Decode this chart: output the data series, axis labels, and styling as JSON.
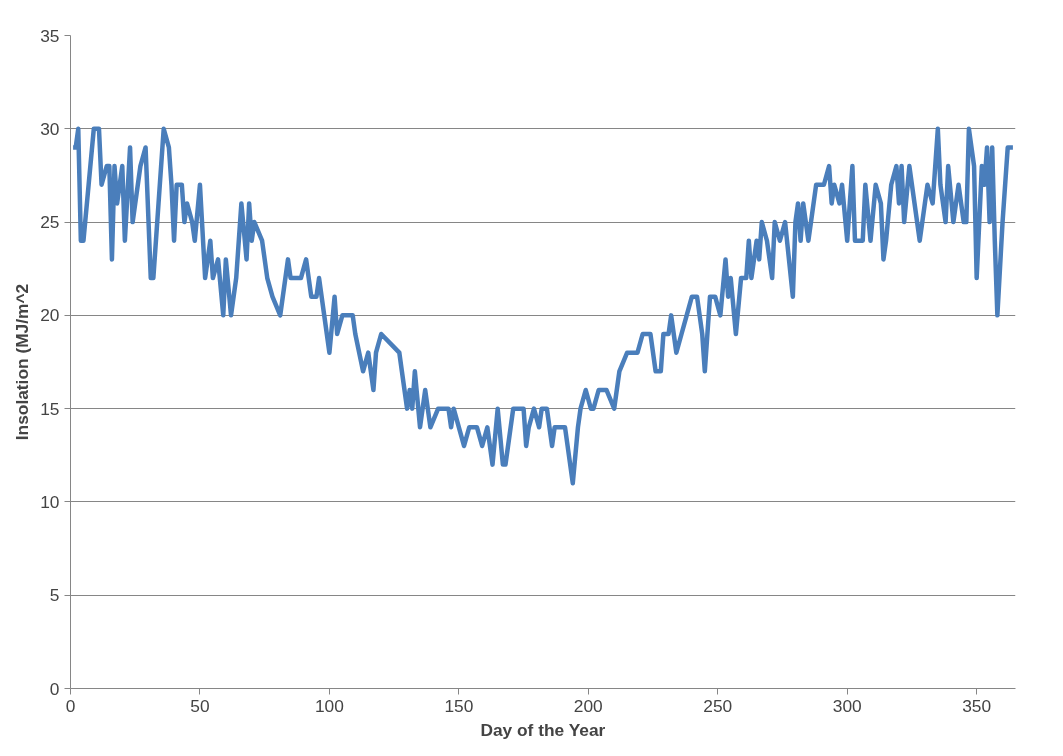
{
  "chart_data": {
    "type": "line",
    "xlabel": "Day of the Year",
    "ylabel": "Insolation (MJ/m^2",
    "xlim": [
      0,
      365
    ],
    "xticks": [
      0,
      50,
      100,
      150,
      200,
      250,
      300,
      350
    ],
    "ylim": [
      0,
      35
    ],
    "yticks": [
      0,
      5,
      10,
      15,
      20,
      25,
      30,
      35
    ],
    "grid": "y",
    "marker": "none",
    "line_style": "solid",
    "series": [
      {
        "color": "#4a7ebb",
        "x": [
          1,
          2,
          3,
          4,
          5,
          7,
          9,
          10,
          11,
          12,
          14,
          15,
          16,
          17,
          18,
          20,
          21,
          23,
          24,
          27,
          29,
          31,
          32,
          34,
          36,
          38,
          39,
          40,
          41,
          43,
          44,
          45,
          47,
          48,
          50,
          52,
          54,
          55,
          57,
          59,
          60,
          62,
          64,
          66,
          68,
          69,
          70,
          71,
          74,
          76,
          78,
          81,
          84,
          85,
          89,
          91,
          93,
          95,
          96,
          98,
          100,
          102,
          103,
          105,
          109,
          110,
          113,
          115,
          117,
          118,
          120,
          127,
          128,
          130,
          131,
          132,
          133,
          135,
          137,
          139,
          142,
          146,
          147,
          148,
          152,
          154,
          157,
          159,
          161,
          163,
          165,
          167,
          168,
          171,
          175,
          176,
          177,
          179,
          181,
          182,
          184,
          186,
          187,
          191,
          194,
          196,
          197,
          199,
          201,
          202,
          204,
          207,
          210,
          212,
          215,
          219,
          221,
          224,
          226,
          228,
          229,
          231,
          232,
          234,
          236,
          238,
          240,
          242,
          244,
          245,
          247,
          249,
          251,
          253,
          254,
          255,
          257,
          259,
          261,
          262,
          263,
          265,
          266,
          267,
          269,
          271,
          272,
          274,
          276,
          279,
          280,
          281,
          282,
          283,
          285,
          286,
          288,
          291,
          293,
          294,
          295,
          297,
          298,
          300,
          302,
          303,
          306,
          307,
          309,
          311,
          313,
          314,
          315,
          317,
          319,
          320,
          321,
          322,
          324,
          326,
          328,
          330,
          331,
          333,
          334,
          335,
          336,
          337,
          338,
          339,
          341,
          343,
          345,
          346,
          347,
          349,
          350,
          352,
          353,
          354,
          355,
          356,
          357,
          358,
          360,
          362,
          364
        ],
        "values": [
          29,
          29,
          30,
          24,
          24,
          27,
          30,
          30,
          30,
          27,
          28,
          28,
          23,
          28,
          26,
          28,
          24,
          29,
          25,
          28,
          29,
          22,
          22,
          26,
          30,
          29,
          27,
          24,
          27,
          27,
          25,
          26,
          25,
          24,
          27,
          22,
          24,
          22,
          23,
          20,
          23,
          20,
          22,
          26,
          23,
          26,
          24,
          25,
          24,
          22,
          21,
          20,
          23,
          22,
          22,
          23,
          21,
          21,
          22,
          20,
          18,
          21,
          19,
          20,
          20,
          19,
          17,
          18,
          16,
          18,
          19,
          18,
          17,
          15,
          16,
          15,
          17,
          14,
          16,
          14,
          15,
          15,
          14,
          15,
          13,
          14,
          14,
          13,
          14,
          12,
          15,
          12,
          12,
          15,
          15,
          13,
          14,
          15,
          14,
          15,
          15,
          13,
          14,
          14,
          11,
          14,
          15,
          16,
          15,
          15,
          16,
          16,
          15,
          17,
          18,
          18,
          19,
          19,
          17,
          17,
          19,
          19,
          20,
          18,
          19,
          20,
          21,
          21,
          19,
          17,
          21,
          21,
          20,
          23,
          21,
          22,
          19,
          22,
          22,
          24,
          22,
          24,
          23,
          25,
          24,
          22,
          25,
          24,
          25,
          21,
          25,
          26,
          24,
          26,
          24,
          25,
          27,
          27,
          28,
          26,
          27,
          26,
          27,
          24,
          28,
          24,
          24,
          27,
          24,
          27,
          26,
          23,
          24,
          27,
          28,
          26,
          28,
          25,
          28,
          26,
          24,
          26,
          27,
          26,
          28,
          30,
          27,
          26,
          25,
          28,
          25,
          27,
          25,
          25,
          30,
          28,
          22,
          28,
          27,
          29,
          25,
          29,
          24,
          20,
          25,
          29,
          29
        ]
      }
    ]
  }
}
